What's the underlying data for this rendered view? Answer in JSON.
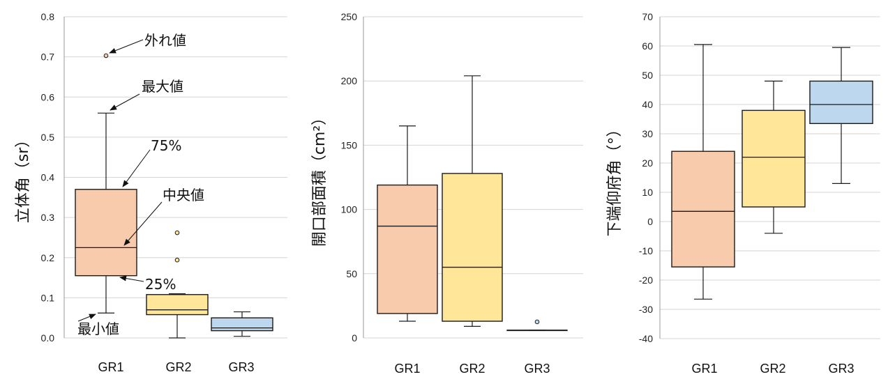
{
  "chart_data": [
    {
      "type": "box",
      "ylabel": "立体角（sr）",
      "ylim": [
        0,
        0.8
      ],
      "yticks": [
        "0.0",
        "0.1",
        "0.2",
        "0.3",
        "0.4",
        "0.5",
        "0.6",
        "0.7",
        "0.8"
      ],
      "categories": [
        "GR1",
        "GR2",
        "GR3"
      ],
      "grid": true,
      "boxes": [
        {
          "category": "GR1",
          "min": 0.062,
          "q1": 0.155,
          "median": 0.225,
          "q3": 0.37,
          "max": 0.56,
          "outliers": [
            0.703
          ],
          "color": "#F8CBAD"
        },
        {
          "category": "GR2",
          "min": 0.0,
          "q1": 0.058,
          "median": 0.07,
          "q3": 0.108,
          "max": 0.11,
          "outliers": [
            0.194,
            0.262
          ],
          "color": "#FFE699"
        },
        {
          "category": "GR3",
          "min": 0.004,
          "q1": 0.018,
          "median": 0.025,
          "q3": 0.05,
          "max": 0.065,
          "outliers": [],
          "color": "#BDD7EE"
        }
      ],
      "annotations": [
        {
          "text": "外れ値",
          "points_to": "GR1 outlier"
        },
        {
          "text": "最大値",
          "points_to": "GR1 max"
        },
        {
          "text": "75%",
          "points_to": "GR1 q3"
        },
        {
          "text": "中央値",
          "points_to": "GR1 median"
        },
        {
          "text": "25%",
          "points_to": "GR1 q1"
        },
        {
          "text": "最小値",
          "points_to": "GR1 min"
        }
      ]
    },
    {
      "type": "box",
      "ylabel": "開口部面積（cm²）",
      "ylim": [
        0,
        250
      ],
      "yticks": [
        "0",
        "50",
        "100",
        "150",
        "200",
        "250"
      ],
      "categories": [
        "GR1",
        "GR2",
        "GR3"
      ],
      "grid": true,
      "boxes": [
        {
          "category": "GR1",
          "min": 13,
          "q1": 19,
          "median": 87,
          "q3": 119,
          "max": 165,
          "outliers": [],
          "color": "#F8CBAD"
        },
        {
          "category": "GR2",
          "min": 9,
          "q1": 13,
          "median": 55,
          "q3": 128,
          "max": 204,
          "outliers": [],
          "color": "#FFE699"
        },
        {
          "category": "GR3",
          "min": 6,
          "q1": 6,
          "median": 6,
          "q3": 6,
          "max": 6,
          "outliers": [
            12.5
          ],
          "color": "#BDD7EE"
        }
      ]
    },
    {
      "type": "box",
      "ylabel": "下端仰府角（°）",
      "ylim": [
        -40,
        70
      ],
      "yticks": [
        "-40",
        "-30",
        "-20",
        "-10",
        "0",
        "10",
        "20",
        "30",
        "40",
        "50",
        "60",
        "70"
      ],
      "categories": [
        "GR1",
        "GR2",
        "GR3"
      ],
      "grid": true,
      "boxes": [
        {
          "category": "GR1",
          "min": -26.5,
          "q1": -15.5,
          "median": 3.5,
          "q3": 24,
          "max": 60.5,
          "outliers": [],
          "color": "#F8CBAD"
        },
        {
          "category": "GR2",
          "min": -4,
          "q1": 5,
          "median": 22,
          "q3": 38,
          "max": 48,
          "outliers": [],
          "color": "#FFE699"
        },
        {
          "category": "GR3",
          "min": 13,
          "q1": 33.5,
          "median": 40,
          "q3": 48,
          "max": 59.5,
          "outliers": [],
          "color": "#BDD7EE"
        }
      ]
    }
  ]
}
